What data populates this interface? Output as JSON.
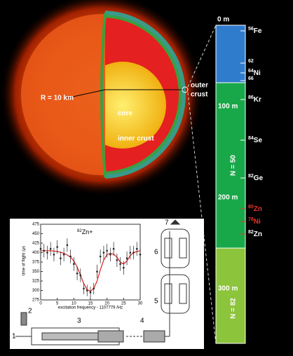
{
  "star": {
    "radius_label": "R = 10 km",
    "core": "core",
    "inner_crust": "inner crust",
    "outer_crust_1": "outer",
    "outer_crust_2": "crust"
  },
  "depth_column": {
    "depth_labels": [
      "0 m",
      "100 m",
      "200 m",
      "300 m"
    ],
    "shell_labels": [
      "N = 50",
      "N = 82"
    ],
    "nuclides": [
      {
        "mass": "56",
        "element": "Fe",
        "color": "#ffffff"
      },
      {
        "mass": "62",
        "element": "",
        "color": "#ffffff"
      },
      {
        "mass": "64",
        "element": "Ni",
        "color": "#ffffff"
      },
      {
        "mass": "66",
        "element": "",
        "color": "#ffffff"
      },
      {
        "mass": "86",
        "element": "Kr",
        "color": "#ffffff"
      },
      {
        "mass": "84",
        "element": "Se",
        "color": "#ffffff"
      },
      {
        "mass": "82",
        "element": "Ge",
        "color": "#ffffff"
      },
      {
        "mass": "80",
        "element": "Zn",
        "color": "#e8332a"
      },
      {
        "mass": "78",
        "element": "Ni",
        "color": "#e8332a"
      },
      {
        "mass": "82",
        "element": "Zn",
        "color": "#ffffff"
      }
    ]
  },
  "inset_chart": {
    "type": "scatter",
    "title_mass": "82",
    "title_symbol": "Zn+",
    "x_label": "excitation frequency - 1107779 /Hz",
    "y_label": "time of flight /µs",
    "xlim": [
      0,
      30
    ],
    "ylim": [
      275,
      475
    ],
    "xticks": [
      0,
      5,
      10,
      15,
      20,
      25,
      30
    ],
    "yticks": [
      275,
      300,
      325,
      350,
      375,
      400,
      425,
      450,
      475
    ],
    "x": [
      0,
      1,
      2,
      3,
      4,
      5,
      6,
      7,
      8,
      9,
      10,
      11,
      12,
      13,
      14,
      15,
      16,
      17,
      18,
      19,
      20,
      21,
      22,
      23,
      24,
      25,
      26,
      27,
      28,
      29,
      30
    ],
    "values": [
      410,
      405,
      400,
      410,
      395,
      415,
      385,
      395,
      420,
      390,
      370,
      345,
      340,
      305,
      300,
      295,
      305,
      350,
      390,
      400,
      405,
      395,
      410,
      380,
      370,
      360,
      385,
      400,
      400,
      410,
      395
    ],
    "errors": [
      18,
      18,
      18,
      18,
      18,
      18,
      18,
      18,
      18,
      18,
      18,
      18,
      18,
      15,
      15,
      15,
      15,
      18,
      18,
      18,
      18,
      18,
      18,
      18,
      18,
      18,
      18,
      18,
      18,
      18,
      18
    ],
    "fit": [
      405,
      405,
      405,
      405,
      404,
      403,
      401,
      398,
      394,
      388,
      378,
      362,
      340,
      318,
      302,
      298,
      305,
      325,
      355,
      380,
      395,
      398,
      396,
      388,
      375,
      370,
      378,
      392,
      400,
      403,
      405
    ],
    "point_color": "#222222",
    "fit_color": "#e02020"
  },
  "apparatus_labels": [
    "1",
    "2",
    "3",
    "4",
    "5",
    "6",
    "7"
  ]
}
